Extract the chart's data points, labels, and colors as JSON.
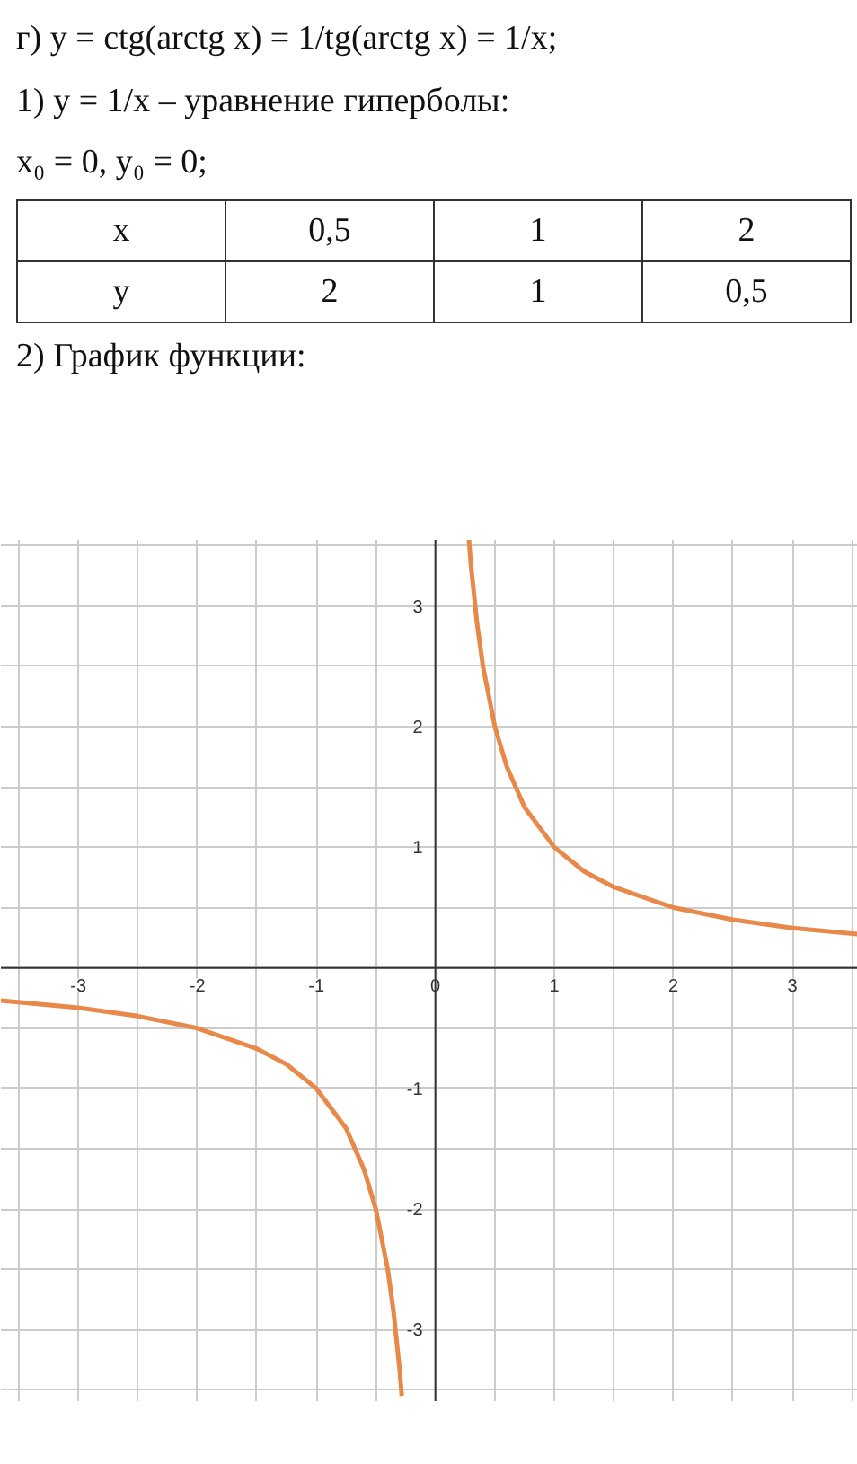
{
  "chart_data": {
    "type": "line",
    "annotations": [
      "г) y = ctg(arctg x) = 1/tg(arctg x) = 1/x;",
      "1) y = 1/x – уравнение гиперболы:",
      "x₀ = 0,  y₀ = 0;",
      "x",
      "0,5",
      "1",
      "2",
      "y",
      "2",
      "1",
      "0,5",
      "2) График функции:"
    ],
    "series": [
      {
        "color": "#e8894a",
        "x": [
          0.282,
          0.3,
          0.35,
          0.4,
          0.5,
          0.6,
          0.75,
          1,
          1.25,
          1.5,
          2,
          2.5,
          3,
          3.55
        ],
        "values": [
          3.55,
          3.33,
          2.86,
          2.5,
          2,
          1.67,
          1.33,
          1,
          0.8,
          0.67,
          0.5,
          0.4,
          0.33,
          0.28
        ]
      },
      {
        "color": "#e8894a",
        "x": [
          -3.65,
          -3,
          -2.5,
          -2,
          -1.5,
          -1.25,
          -1,
          -0.75,
          -0.6,
          -0.5,
          -0.4,
          -0.35,
          -0.3,
          -0.282
        ],
        "values": [
          -0.27,
          -0.33,
          -0.4,
          -0.5,
          -0.67,
          -0.8,
          -1,
          -1.33,
          -1.67,
          -2,
          -2.5,
          -2.86,
          -3.33,
          -3.55
        ]
      }
    ],
    "xlim": [
      -3.65,
      3.55
    ],
    "ylim": [
      -3.6,
      3.55
    ],
    "xticks": [
      {
        "value": -3.5,
        "label": null
      },
      -3,
      {
        "value": -2.5,
        "label": null
      },
      -2,
      {
        "value": -1.5,
        "label": null
      },
      -1,
      {
        "value": -0.5,
        "label": null
      },
      0,
      {
        "value": 0.5,
        "label": null
      },
      1,
      {
        "value": 1.5,
        "label": null
      },
      2,
      {
        "value": 2.5,
        "label": null
      },
      3,
      {
        "value": 3.5,
        "label": null
      }
    ],
    "yticks": [
      {
        "value": -3.5,
        "label": null
      },
      -3,
      {
        "value": -2.5,
        "label": null
      },
      -2,
      {
        "value": -1.5,
        "label": null
      },
      -1,
      {
        "value": -0.5,
        "label": null
      },
      {
        "value": 0,
        "label": null
      },
      {
        "value": 0.5,
        "label": null
      },
      1,
      {
        "value": 1.5,
        "label": null
      },
      2,
      {
        "value": 2.5,
        "label": null
      },
      3,
      {
        "value": 3.5,
        "label": null
      }
    ],
    "grid": true
  }
}
